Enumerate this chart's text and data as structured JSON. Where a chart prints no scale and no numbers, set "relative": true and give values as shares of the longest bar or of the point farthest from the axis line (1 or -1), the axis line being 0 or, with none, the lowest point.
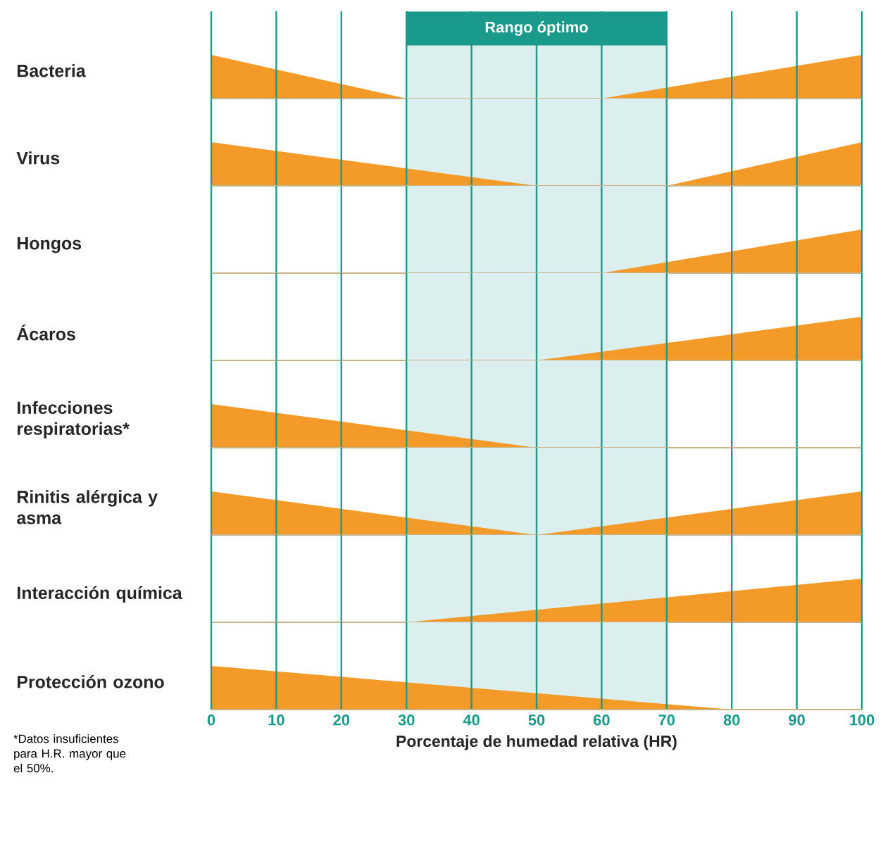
{
  "chart_data": [
    {
      "type": "area",
      "ylabel": "Bacteria",
      "x": [
        0,
        30,
        60,
        100
      ],
      "series": [
        {
          "color": "#f39a28",
          "values": [
            1,
            0,
            0,
            1
          ]
        }
      ],
      "relative": true,
      "xlim": [
        0,
        100
      ],
      "xticks": [
        0,
        10,
        20,
        30,
        40,
        50,
        60,
        70,
        80,
        90,
        100
      ],
      "grid": "x",
      "tick_labels": false,
      "bands": [
        {
          "axis": "x",
          "from": 30,
          "to": 70,
          "label": "Rango óptimo",
          "color": "#dcefef"
        }
      ]
    },
    {
      "type": "area",
      "ylabel": "Virus",
      "x": [
        0,
        50,
        70,
        100
      ],
      "series": [
        {
          "color": "#f39a28",
          "values": [
            1,
            0,
            0,
            1
          ]
        }
      ],
      "relative": true,
      "xlim": [
        0,
        100
      ],
      "xticks": [
        0,
        10,
        20,
        30,
        40,
        50,
        60,
        70,
        80,
        90,
        100
      ],
      "grid": "x",
      "tick_labels": false,
      "bands": [
        {
          "axis": "x",
          "from": 30,
          "to": 70,
          "color": "#dcefef"
        }
      ]
    },
    {
      "type": "area",
      "ylabel": "Hongos",
      "x": [
        0,
        60,
        100
      ],
      "series": [
        {
          "color": "#f39a28",
          "values": [
            0,
            0,
            1
          ]
        }
      ],
      "relative": true,
      "xlim": [
        0,
        100
      ],
      "xticks": [
        0,
        10,
        20,
        30,
        40,
        50,
        60,
        70,
        80,
        90,
        100
      ],
      "grid": "x",
      "tick_labels": false,
      "bands": [
        {
          "axis": "x",
          "from": 30,
          "to": 70,
          "color": "#dcefef"
        }
      ]
    },
    {
      "type": "area",
      "ylabel": "Ácaros",
      "x": [
        0,
        50,
        100
      ],
      "series": [
        {
          "color": "#f39a28",
          "values": [
            0,
            0,
            1
          ]
        }
      ],
      "relative": true,
      "xlim": [
        0,
        100
      ],
      "xticks": [
        0,
        10,
        20,
        30,
        40,
        50,
        60,
        70,
        80,
        90,
        100
      ],
      "grid": "x",
      "tick_labels": false,
      "bands": [
        {
          "axis": "x",
          "from": 30,
          "to": 70,
          "color": "#dcefef"
        }
      ]
    },
    {
      "type": "area",
      "ylabel": "Infecciones respiratorias*",
      "x": [
        0,
        50,
        100
      ],
      "series": [
        {
          "color": "#f39a28",
          "values": [
            1,
            0,
            0
          ]
        }
      ],
      "relative": true,
      "xlim": [
        0,
        100
      ],
      "xticks": [
        0,
        10,
        20,
        30,
        40,
        50,
        60,
        70,
        80,
        90,
        100
      ],
      "grid": "x",
      "tick_labels": false,
      "bands": [
        {
          "axis": "x",
          "from": 30,
          "to": 70,
          "color": "#dcefef"
        }
      ]
    },
    {
      "type": "area",
      "ylabel": "Rinitis alérgica y asma",
      "x": [
        0,
        50,
        100
      ],
      "series": [
        {
          "color": "#f39a28",
          "values": [
            1,
            0,
            1
          ]
        }
      ],
      "relative": true,
      "xlim": [
        0,
        100
      ],
      "xticks": [
        0,
        10,
        20,
        30,
        40,
        50,
        60,
        70,
        80,
        90,
        100
      ],
      "grid": "x",
      "tick_labels": false,
      "bands": [
        {
          "axis": "x",
          "from": 30,
          "to": 70,
          "color": "#dcefef"
        }
      ]
    },
    {
      "type": "area",
      "ylabel": "Interacción química",
      "x": [
        0,
        30,
        100
      ],
      "series": [
        {
          "color": "#f39a28",
          "values": [
            0,
            0,
            1
          ]
        }
      ],
      "relative": true,
      "xlim": [
        0,
        100
      ],
      "xticks": [
        0,
        10,
        20,
        30,
        40,
        50,
        60,
        70,
        80,
        90,
        100
      ],
      "grid": "x",
      "tick_labels": false,
      "bands": [
        {
          "axis": "x",
          "from": 30,
          "to": 70,
          "color": "#dcefef"
        }
      ]
    },
    {
      "type": "area",
      "ylabel": "Protección ozono",
      "x": [
        0,
        80,
        100
      ],
      "series": [
        {
          "color": "#f39a28",
          "values": [
            1,
            0,
            0
          ]
        }
      ],
      "relative": true,
      "xlim": [
        0,
        100
      ],
      "xticks": [
        0,
        10,
        20,
        30,
        40,
        50,
        60,
        70,
        80,
        90,
        100
      ],
      "grid": "x",
      "tick_labels": "x",
      "xlabel": "Porcentaje de humedad relativa (HR)",
      "annotations": [
        "*Datos insuficientes para H.R. mayor que el 50%."
      ],
      "bands": [
        {
          "axis": "x",
          "from": 30,
          "to": 70,
          "color": "#dcefef"
        }
      ]
    }
  ]
}
